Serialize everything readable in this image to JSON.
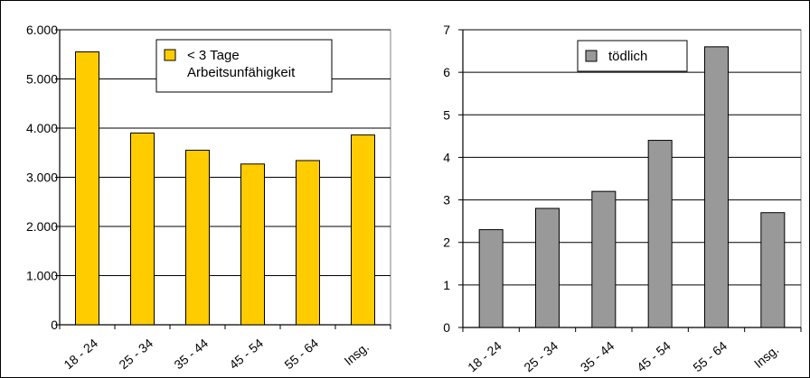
{
  "chart_data": [
    {
      "type": "bar",
      "categories": [
        "18 - 24",
        "25 - 34",
        "35 - 44",
        "45 - 54",
        "55 - 64",
        "Insg."
      ],
      "series": [
        {
          "name": "< 3 Tage Arbeitsunfähigkeit",
          "legend_lines": [
            "< 3 Tage",
            "Arbeitsunfähigkeit"
          ],
          "values": [
            5550,
            3900,
            3550,
            3270,
            3340,
            3860
          ]
        }
      ],
      "ylim": [
        0,
        6000
      ],
      "ytick_values": [
        0,
        1000,
        2000,
        3000,
        4000,
        5000,
        6000
      ],
      "yticks": [
        "0",
        "1.000",
        "2.000",
        "3.000",
        "4.000",
        "5.000",
        "6.000"
      ],
      "grid": true,
      "legend_position": "top-right",
      "bar_color": "#ffcc00"
    },
    {
      "type": "bar",
      "categories": [
        "18 - 24",
        "25 - 34",
        "35 - 44",
        "45 - 54",
        "55 - 64",
        "Insg."
      ],
      "series": [
        {
          "name": "tödlich",
          "legend_lines": [
            "tödlich"
          ],
          "values": [
            2.3,
            2.8,
            3.2,
            4.4,
            6.6,
            2.7
          ]
        }
      ],
      "ylim": [
        0,
        7
      ],
      "ytick_values": [
        0,
        1,
        2,
        3,
        4,
        5,
        6,
        7
      ],
      "yticks": [
        "0",
        "1",
        "2",
        "3",
        "4",
        "5",
        "6",
        "7"
      ],
      "grid": true,
      "legend_position": "top-center",
      "bar_color": "#999999"
    }
  ]
}
